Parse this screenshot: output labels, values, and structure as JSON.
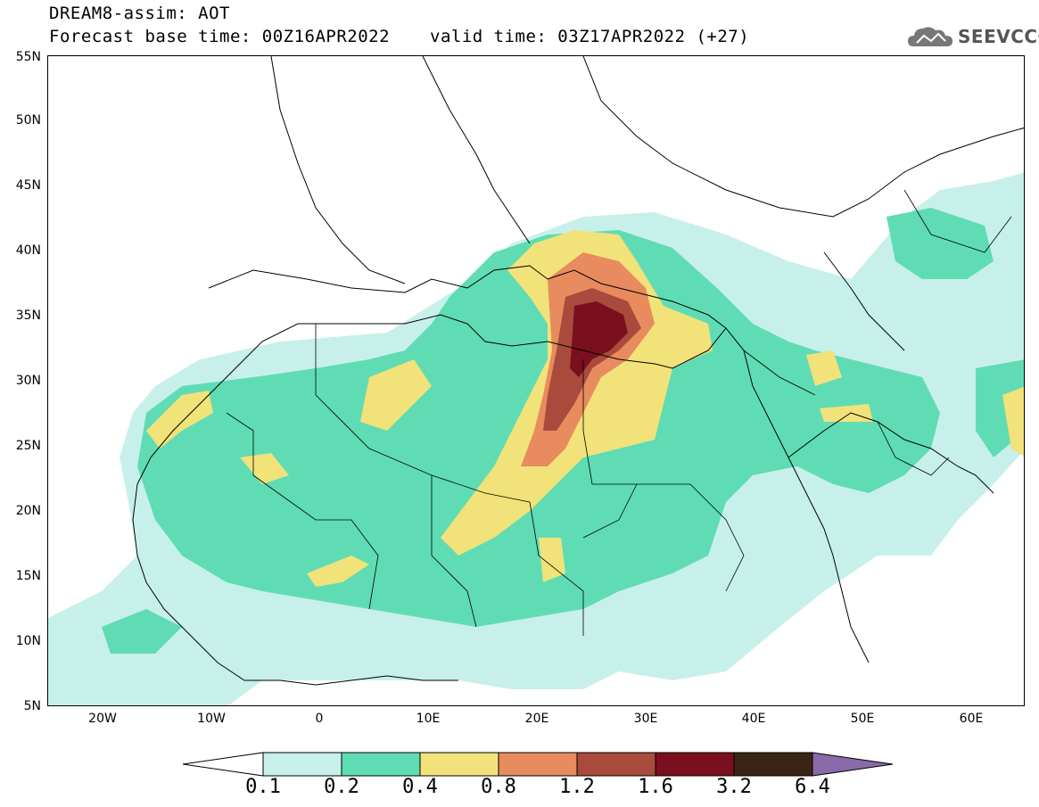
{
  "header": {
    "title_line1": "DREAM8-assim: AOT",
    "title_line2": "Forecast base time: 00Z16APR2022",
    "valid_time": "valid time: 03Z17APR2022 (+27)"
  },
  "logo": {
    "text": "SEEVCCC",
    "icon": "cloud-icon"
  },
  "map": {
    "lat_labels": [
      "55N",
      "50N",
      "45N",
      "40N",
      "35N",
      "30N",
      "25N",
      "20N",
      "15N",
      "10N",
      "5N"
    ],
    "lon_labels": [
      "20W",
      "10W",
      "0",
      "10E",
      "20E",
      "30E",
      "40E",
      "50E",
      "60E"
    ]
  },
  "legend": {
    "labels": [
      "0.1",
      "0.2",
      "0.4",
      "0.8",
      "1.2",
      "1.6",
      "3.2",
      "6.4"
    ],
    "colors": [
      "#c8f0ea",
      "#5fdcb4",
      "#f2e27a",
      "#e88b5e",
      "#a84b3c",
      "#7a0f1e",
      "#3a2415",
      "#8a6aa8"
    ]
  }
}
